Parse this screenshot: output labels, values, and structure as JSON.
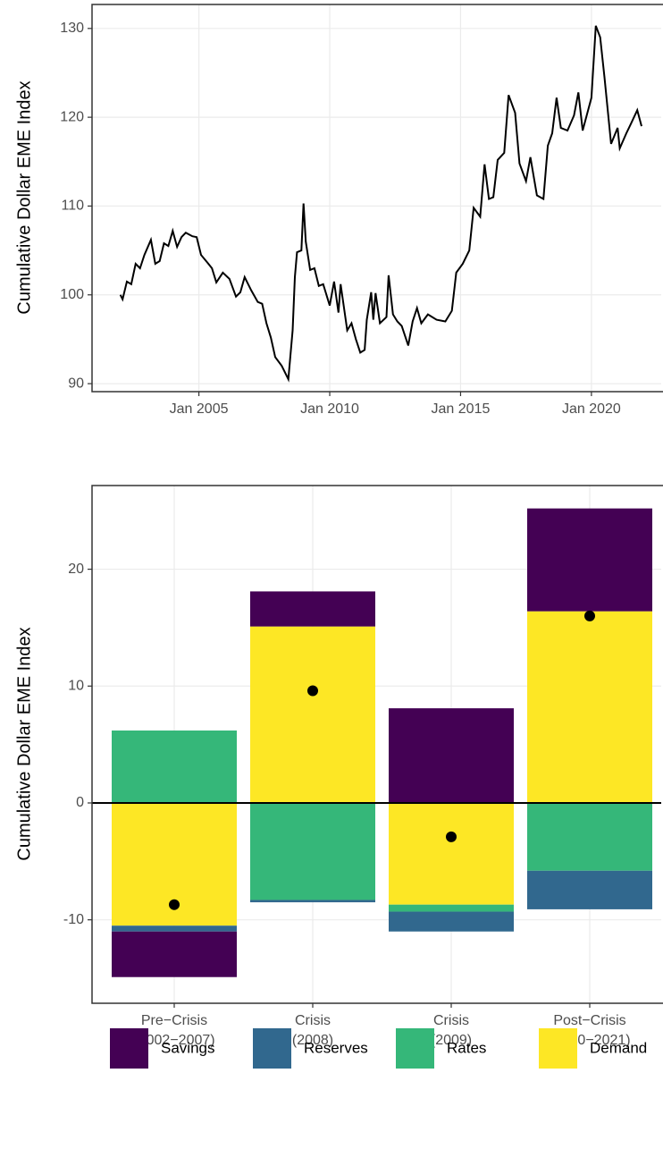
{
  "chart_data": [
    {
      "type": "line",
      "ylabel": "Cumulative Dollar EME Index",
      "color": "#000000",
      "x": [
        "2002-01",
        "2002-02",
        "2002-04",
        "2002-06",
        "2002-08",
        "2002-10",
        "2002-12",
        "2003-03",
        "2003-05",
        "2003-07",
        "2003-09",
        "2003-11",
        "2004-01",
        "2004-03",
        "2004-05",
        "2004-07",
        "2004-10",
        "2004-12",
        "2005-02",
        "2005-05",
        "2005-07",
        "2005-09",
        "2005-12",
        "2006-03",
        "2006-06",
        "2006-08",
        "2006-10",
        "2007-01",
        "2007-04",
        "2007-06",
        "2007-08",
        "2007-10",
        "2007-12",
        "2008-03",
        "2008-06",
        "2008-08",
        "2008-09",
        "2008-10",
        "2008-12",
        "2009-01",
        "2009-02",
        "2009-04",
        "2009-06",
        "2009-08",
        "2009-10",
        "2010-01",
        "2010-03",
        "2010-05",
        "2010-06",
        "2010-09",
        "2010-11",
        "2011-01",
        "2011-03",
        "2011-05",
        "2011-06",
        "2011-08",
        "2011-09",
        "2011-10",
        "2011-12",
        "2012-03",
        "2012-04",
        "2012-06",
        "2012-08",
        "2012-10",
        "2013-01",
        "2013-03",
        "2013-05",
        "2013-07",
        "2013-10",
        "2014-02",
        "2014-06",
        "2014-09",
        "2014-11",
        "2015-02",
        "2015-05",
        "2015-07",
        "2015-10",
        "2015-12",
        "2016-02",
        "2016-04",
        "2016-06",
        "2016-09",
        "2016-11",
        "2017-02",
        "2017-04",
        "2017-07",
        "2017-09",
        "2017-12",
        "2018-03",
        "2018-05",
        "2018-07",
        "2018-09",
        "2018-11",
        "2019-02",
        "2019-05",
        "2019-07",
        "2019-09",
        "2020-01",
        "2020-03",
        "2020-05",
        "2020-07",
        "2020-10",
        "2021-01",
        "2021-02",
        "2021-05",
        "2021-07",
        "2021-10",
        "2021-12"
      ],
      "values": [
        100.0,
        99.5,
        101.5,
        101.2,
        103.5,
        103.0,
        104.5,
        106.2,
        103.5,
        103.8,
        105.8,
        105.5,
        107.2,
        105.4,
        106.5,
        107.0,
        106.6,
        106.5,
        104.5,
        103.6,
        103.0,
        101.4,
        102.5,
        101.8,
        99.8,
        100.3,
        102.0,
        100.5,
        99.2,
        99.0,
        96.8,
        95.2,
        93.0,
        92.0,
        90.5,
        96.0,
        102.0,
        104.8,
        105.0,
        110.3,
        106.0,
        102.8,
        103.0,
        101.0,
        101.2,
        98.8,
        101.5,
        98.0,
        101.2,
        96.0,
        96.8,
        95.0,
        93.5,
        93.8,
        97.2,
        100.3,
        97.2,
        100.2,
        96.8,
        97.5,
        102.2,
        97.8,
        97.0,
        96.5,
        94.3,
        97.0,
        98.5,
        96.8,
        97.8,
        97.2,
        97.0,
        98.2,
        102.5,
        103.5,
        105.0,
        109.8,
        108.8,
        114.7,
        110.8,
        111.0,
        115.2,
        116.0,
        122.5,
        120.5,
        114.8,
        112.8,
        115.5,
        111.2,
        110.8,
        116.8,
        118.2,
        122.2,
        118.8,
        118.5,
        120.2,
        122.8,
        118.5,
        122.2,
        130.3,
        129.0,
        124.5,
        117.0,
        118.8,
        116.5,
        118.2,
        119.2,
        120.8,
        119.0
      ],
      "xlim": [
        "2000-12",
        "2022-09"
      ],
      "xticks": [
        {
          "value": "2005-01",
          "label": "Jan 2005"
        },
        {
          "value": "2010-01",
          "label": "Jan 2010"
        },
        {
          "value": "2015-01",
          "label": "Jan 2015"
        },
        {
          "value": "2020-01",
          "label": "Jan 2020"
        }
      ],
      "ylim": [
        89.1,
        132.7
      ],
      "yticks": [
        90,
        100,
        110,
        120,
        130
      ],
      "grid": true
    },
    {
      "type": "bar",
      "stacked": true,
      "ylabel": "Cumulative Dollar EME Index",
      "categories": [
        [
          "Pre−Crisis",
          "(2002−2007)"
        ],
        [
          "Crisis",
          "(2008)"
        ],
        [
          "Crisis",
          "(2009)"
        ],
        [
          "Post−Crisis",
          "(2010−2021)"
        ]
      ],
      "series": [
        {
          "name": "Savings",
          "color": "#440154",
          "values": [
            -3.9,
            3.0,
            8.1,
            8.8
          ]
        },
        {
          "name": "Reserves",
          "color": "#31688E",
          "values": [
            -0.5,
            -0.2,
            -1.7,
            -3.3
          ]
        },
        {
          "name": "Rates",
          "color": "#35B779",
          "values": [
            6.2,
            -8.3,
            -0.6,
            -5.8
          ]
        },
        {
          "name": "Demand",
          "color": "#FDE725",
          "values": [
            -10.5,
            15.1,
            -8.7,
            16.4
          ]
        }
      ],
      "dots": {
        "color": "#000000",
        "values": [
          -8.7,
          9.6,
          -2.9,
          16.0
        ]
      },
      "hline": 0,
      "ylim": [
        -17.14,
        27.16
      ],
      "yticks": [
        -10,
        0,
        10,
        20
      ],
      "grid": true,
      "legend": "bottom"
    }
  ]
}
